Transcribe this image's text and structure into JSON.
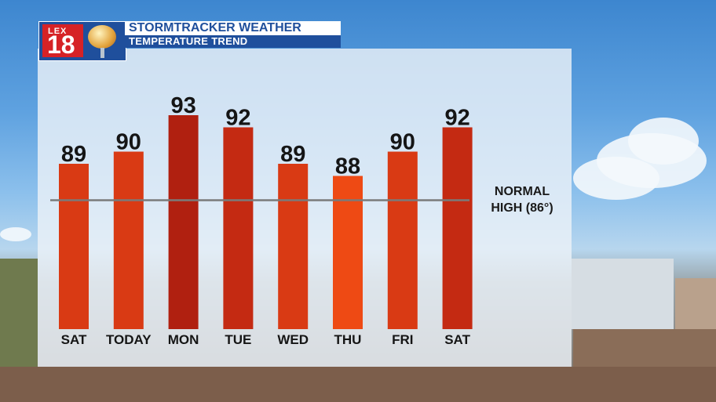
{
  "header": {
    "logo_text_top": "LEX",
    "logo_text_number": "18",
    "title_part1": "STORMTRACKER",
    "title_part2": "WEATHER",
    "subtitle": "TEMPERATURE TREND"
  },
  "chart_data": {
    "type": "bar",
    "categories": [
      "SAT",
      "TODAY",
      "MON",
      "TUE",
      "WED",
      "THU",
      "FRI",
      "SAT"
    ],
    "values": [
      89,
      90,
      93,
      92,
      89,
      88,
      90,
      92
    ],
    "title": "TEMPERATURE TREND",
    "xlabel": "",
    "ylabel": "",
    "ylim": [
      70,
      95
    ],
    "grid": false,
    "reference_line": {
      "value": 86,
      "label_line1": "NORMAL",
      "label_line2": "HIGH (86°)"
    },
    "bar_colors": [
      "#d93a14",
      "#d93a14",
      "#b02010",
      "#c42a12",
      "#d93a14",
      "#ee4a14",
      "#d93a14",
      "#c42a12"
    ]
  }
}
